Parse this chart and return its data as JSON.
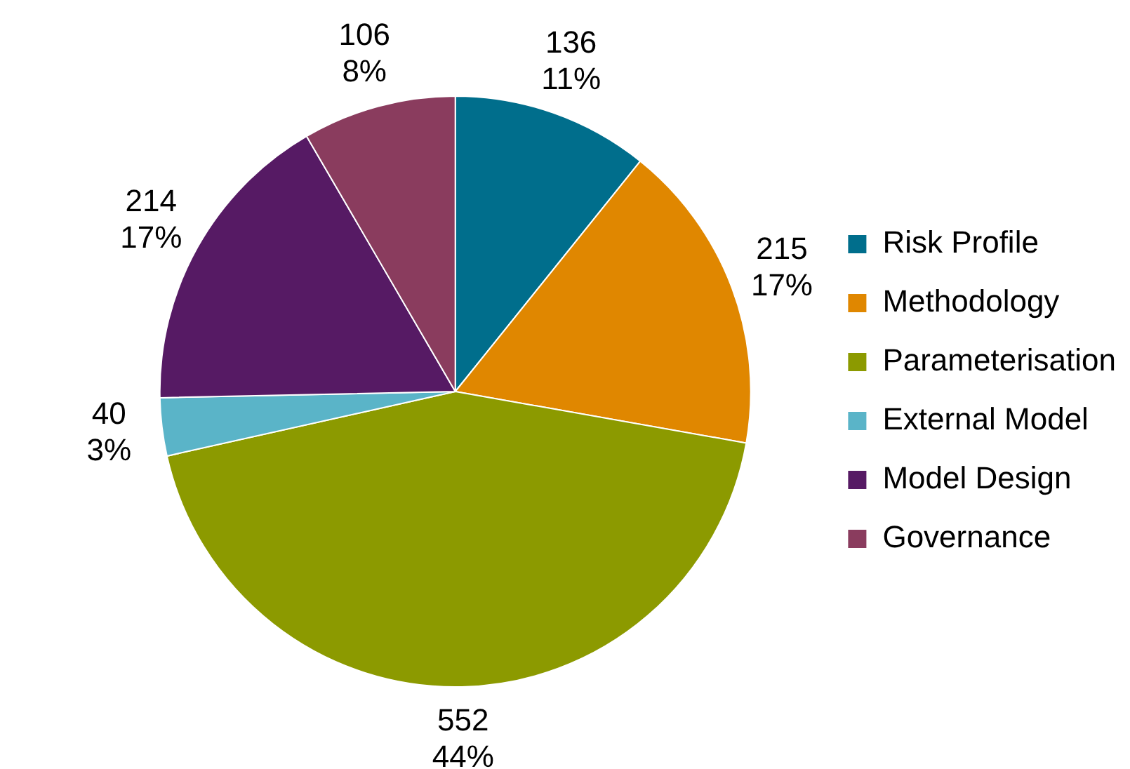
{
  "chart_data": {
    "type": "pie",
    "categories": [
      "Risk Profile",
      "Methodology",
      "Parameterisation",
      "External Model",
      "Model Design",
      "Governance"
    ],
    "values": [
      136,
      215,
      552,
      40,
      214,
      106
    ],
    "colors": [
      "#006e8c",
      "#e08700",
      "#8c9a00",
      "#5ab4c8",
      "#561a64",
      "#8a3c5e"
    ],
    "value_labels": [
      "136\n11%",
      "215\n17%",
      "552\n44%",
      "40\n3%",
      "214\n17%",
      "106\n8%"
    ],
    "legend": "right"
  }
}
